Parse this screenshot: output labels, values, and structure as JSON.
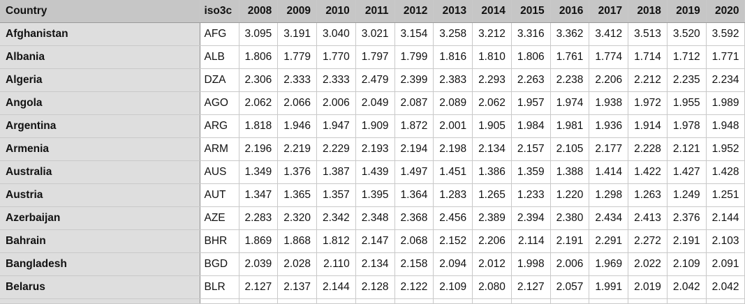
{
  "table": {
    "headers": [
      "Country",
      "iso3c",
      "2008",
      "2009",
      "2010",
      "2011",
      "2012",
      "2013",
      "2014",
      "2015",
      "2016",
      "2017",
      "2018",
      "2019",
      "2020"
    ],
    "rows": [
      {
        "country": "Afghanistan",
        "iso": "AFG",
        "values": [
          "3.095",
          "3.191",
          "3.040",
          "3.021",
          "3.154",
          "3.258",
          "3.212",
          "3.316",
          "3.362",
          "3.412",
          "3.513",
          "3.520",
          "3.592"
        ]
      },
      {
        "country": "Albania",
        "iso": "ALB",
        "values": [
          "1.806",
          "1.779",
          "1.770",
          "1.797",
          "1.799",
          "1.816",
          "1.810",
          "1.806",
          "1.761",
          "1.774",
          "1.714",
          "1.712",
          "1.771"
        ]
      },
      {
        "country": "Algeria",
        "iso": "DZA",
        "values": [
          "2.306",
          "2.333",
          "2.333",
          "2.479",
          "2.399",
          "2.383",
          "2.293",
          "2.263",
          "2.238",
          "2.206",
          "2.212",
          "2.235",
          "2.234"
        ]
      },
      {
        "country": "Angola",
        "iso": "AGO",
        "values": [
          "2.062",
          "2.066",
          "2.006",
          "2.049",
          "2.087",
          "2.089",
          "2.062",
          "1.957",
          "1.974",
          "1.938",
          "1.972",
          "1.955",
          "1.989"
        ]
      },
      {
        "country": "Argentina",
        "iso": "ARG",
        "values": [
          "1.818",
          "1.946",
          "1.947",
          "1.909",
          "1.872",
          "2.001",
          "1.905",
          "1.984",
          "1.981",
          "1.936",
          "1.914",
          "1.978",
          "1.948"
        ]
      },
      {
        "country": "Armenia",
        "iso": "ARM",
        "values": [
          "2.196",
          "2.219",
          "2.229",
          "2.193",
          "2.194",
          "2.198",
          "2.134",
          "2.157",
          "2.105",
          "2.177",
          "2.228",
          "2.121",
          "1.952"
        ]
      },
      {
        "country": "Australia",
        "iso": "AUS",
        "values": [
          "1.349",
          "1.376",
          "1.387",
          "1.439",
          "1.497",
          "1.451",
          "1.386",
          "1.359",
          "1.388",
          "1.414",
          "1.422",
          "1.427",
          "1.428"
        ]
      },
      {
        "country": "Austria",
        "iso": "AUT",
        "values": [
          "1.347",
          "1.365",
          "1.357",
          "1.395",
          "1.364",
          "1.283",
          "1.265",
          "1.233",
          "1.220",
          "1.298",
          "1.263",
          "1.249",
          "1.251"
        ]
      },
      {
        "country": "Azerbaijan",
        "iso": "AZE",
        "values": [
          "2.283",
          "2.320",
          "2.342",
          "2.348",
          "2.368",
          "2.456",
          "2.389",
          "2.394",
          "2.380",
          "2.434",
          "2.413",
          "2.376",
          "2.144"
        ]
      },
      {
        "country": "Bahrain",
        "iso": "BHR",
        "values": [
          "1.869",
          "1.868",
          "1.812",
          "2.147",
          "2.068",
          "2.152",
          "2.206",
          "2.114",
          "2.191",
          "2.291",
          "2.272",
          "2.191",
          "2.103"
        ]
      },
      {
        "country": "Bangladesh",
        "iso": "BGD",
        "values": [
          "2.039",
          "2.028",
          "2.110",
          "2.134",
          "2.158",
          "2.094",
          "2.012",
          "1.998",
          "2.006",
          "1.969",
          "2.022",
          "2.109",
          "2.091"
        ]
      },
      {
        "country": "Belarus",
        "iso": "BLR",
        "values": [
          "2.127",
          "2.137",
          "2.144",
          "2.128",
          "2.122",
          "2.109",
          "2.080",
          "2.127",
          "2.057",
          "1.991",
          "2.019",
          "2.042",
          "2.042"
        ]
      }
    ]
  }
}
